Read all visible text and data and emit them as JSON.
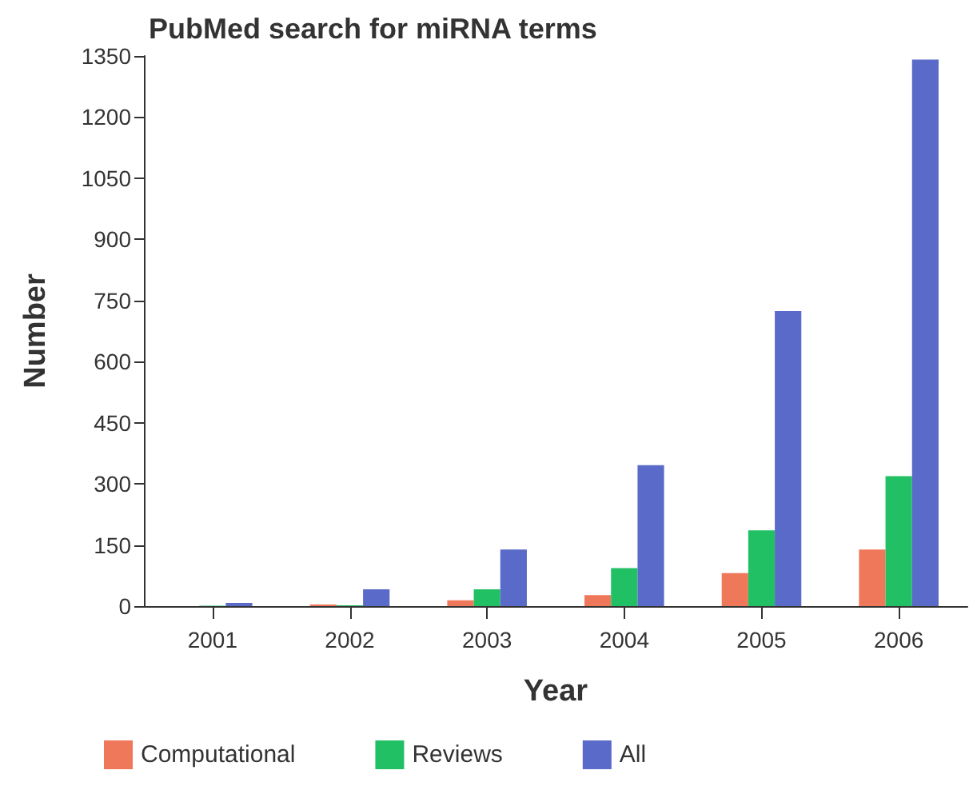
{
  "chart_data": {
    "type": "bar",
    "title": "PubMed search for miRNA terms",
    "xlabel": "Year",
    "ylabel": "Number",
    "categories": [
      "2001",
      "2002",
      "2003",
      "2004",
      "2005",
      "2006"
    ],
    "series": [
      {
        "name": "Computational",
        "color": "#f0785a",
        "values": [
          0,
          4,
          14,
          27,
          81,
          139
        ]
      },
      {
        "name": "Reviews",
        "color": "#22c064",
        "values": [
          1,
          2,
          41,
          93,
          186,
          319
        ]
      },
      {
        "name": "All",
        "color": "#5a6ac8",
        "values": [
          8,
          41,
          139,
          346,
          724,
          1341
        ]
      }
    ],
    "ylim": [
      0,
      1350
    ],
    "yticks": [
      0,
      150,
      300,
      450,
      600,
      750,
      900,
      1050,
      1200,
      1350
    ],
    "grid": false,
    "legend": "bottom"
  }
}
